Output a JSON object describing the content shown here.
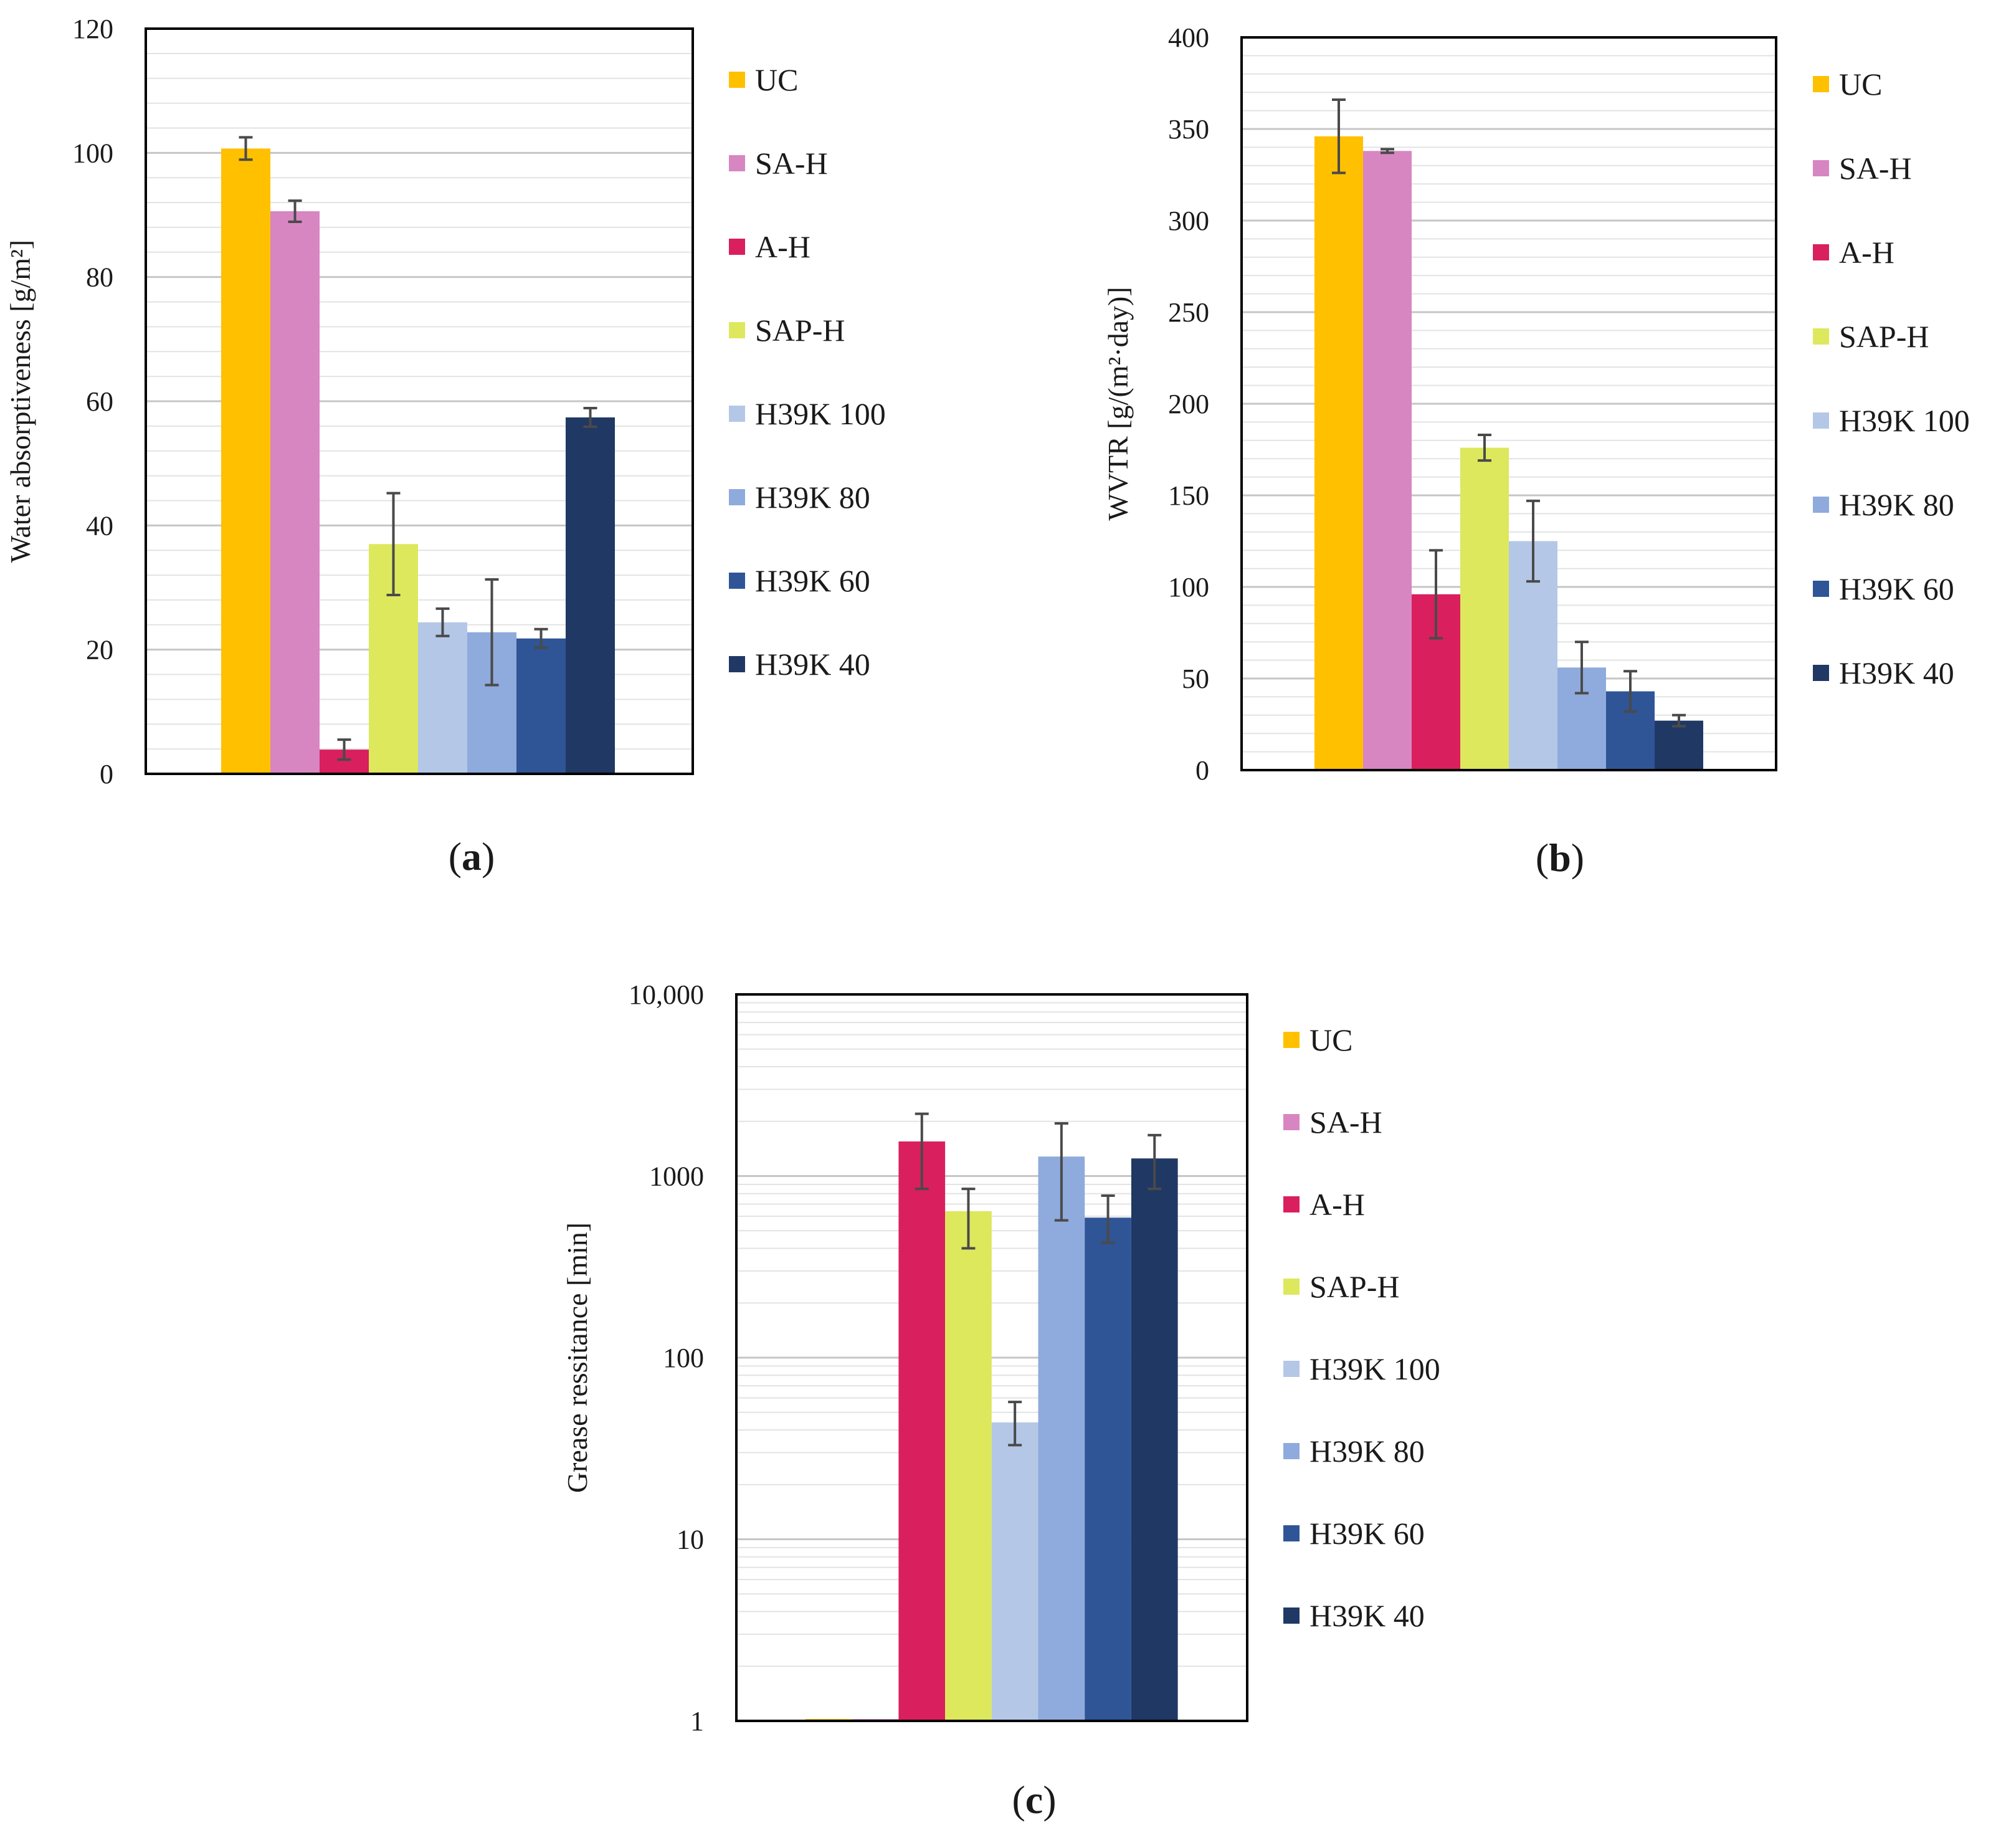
{
  "chart_data": [
    {
      "type": "bar",
      "panel_label": "a",
      "title": "",
      "xlabel": "",
      "ylabel": "Water absorptiveness [g/m²]",
      "yscale": "linear",
      "ylim": [
        0,
        120
      ],
      "yticks": [
        0,
        20,
        40,
        60,
        80,
        100,
        120
      ],
      "ytick_labels": [
        "0",
        "20",
        "40",
        "60",
        "80",
        "100",
        "120"
      ],
      "grid": true,
      "legend_position": "right",
      "series": [
        {
          "name": "UC",
          "color": "#FFC000",
          "value": 100.7,
          "error": 1.8
        },
        {
          "name": "SA-H",
          "color": "#D886C2",
          "value": 90.6,
          "error": 1.7
        },
        {
          "name": "A-H",
          "color": "#D91F5E",
          "value": 3.9,
          "error": 1.6
        },
        {
          "name": "SAP-H",
          "color": "#DDE85C",
          "value": 37.0,
          "error": 8.2
        },
        {
          "name": "H39K 100",
          "color": "#B4C7E7",
          "value": 24.4,
          "error": 2.2
        },
        {
          "name": "H39K 80",
          "color": "#8FAADC",
          "value": 22.8,
          "error": 8.5
        },
        {
          "name": "H39K 60",
          "color": "#2F5597",
          "value": 21.8,
          "error": 1.5
        },
        {
          "name": "H39K 40",
          "color": "#203864",
          "value": 57.4,
          "error": 1.5
        }
      ]
    },
    {
      "type": "bar",
      "panel_label": "b",
      "title": "",
      "xlabel": "",
      "ylabel": "WVTR [g/(m²·day)]",
      "yscale": "linear",
      "ylim": [
        0,
        400
      ],
      "yticks": [
        0,
        50,
        100,
        150,
        200,
        250,
        300,
        350,
        400
      ],
      "ytick_labels": [
        "0",
        "50",
        "100",
        "150",
        "200",
        "250",
        "300",
        "350",
        "400"
      ],
      "grid": true,
      "legend_position": "right",
      "series": [
        {
          "name": "UC",
          "color": "#FFC000",
          "value": 346,
          "error": 20
        },
        {
          "name": "SA-H",
          "color": "#D886C2",
          "value": 338,
          "error": 1
        },
        {
          "name": "A-H",
          "color": "#D91F5E",
          "value": 96,
          "error": 24
        },
        {
          "name": "SAP-H",
          "color": "#DDE85C",
          "value": 176,
          "error": 7
        },
        {
          "name": "H39K 100",
          "color": "#B4C7E7",
          "value": 125,
          "error": 22
        },
        {
          "name": "H39K 80",
          "color": "#8FAADC",
          "value": 56,
          "error": 14
        },
        {
          "name": "H39K 60",
          "color": "#2F5597",
          "value": 43,
          "error": 11
        },
        {
          "name": "H39K 40",
          "color": "#203864",
          "value": 27,
          "error": 3
        }
      ]
    },
    {
      "type": "bar",
      "panel_label": "c",
      "title": "",
      "xlabel": "",
      "ylabel": "Grease ressitance [min]",
      "yscale": "log",
      "ylim": [
        1,
        10000
      ],
      "yticks": [
        1,
        10,
        100,
        1000,
        10000
      ],
      "ytick_labels": [
        "1",
        "10",
        "100",
        "1000",
        "10,000"
      ],
      "grid": true,
      "legend_position": "right",
      "series": [
        {
          "name": "UC",
          "color": "#FFC000",
          "value": 1,
          "err_low": null,
          "err_high": null
        },
        {
          "name": "SA-H",
          "color": "#D886C2",
          "value": 1,
          "err_low": null,
          "err_high": null
        },
        {
          "name": "A-H",
          "color": "#D91F5E",
          "value": 1550,
          "err_low": 850,
          "err_high": 2200
        },
        {
          "name": "SAP-H",
          "color": "#DDE85C",
          "value": 640,
          "err_low": 400,
          "err_high": 850
        },
        {
          "name": "H39K 100",
          "color": "#B4C7E7",
          "value": 44,
          "err_low": 33,
          "err_high": 57
        },
        {
          "name": "H39K 80",
          "color": "#8FAADC",
          "value": 1280,
          "err_low": 570,
          "err_high": 1950
        },
        {
          "name": "H39K 60",
          "color": "#2F5597",
          "value": 590,
          "err_low": 430,
          "err_high": 780
        },
        {
          "name": "H39K 40",
          "color": "#203864",
          "value": 1250,
          "err_low": 850,
          "err_high": 1680
        }
      ]
    }
  ]
}
